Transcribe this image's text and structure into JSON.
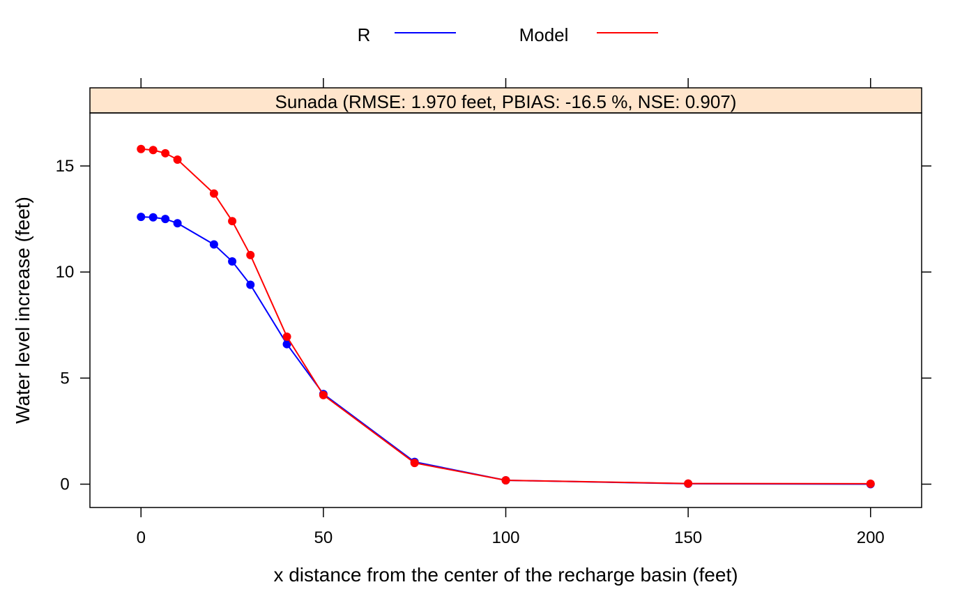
{
  "chart_data": {
    "type": "line",
    "strip_title": "Sunada (RMSE: 1.970 feet, PBIAS: -16.5 %, NSE: 0.907)",
    "xlabel": "x distance from the center of the recharge basin (feet)",
    "ylabel": "Water level increase (feet)",
    "xlim": [
      -14,
      214
    ],
    "ylim": [
      -1.1,
      17.5
    ],
    "x_ticks": [
      0,
      50,
      100,
      150,
      200
    ],
    "y_ticks": [
      0,
      5,
      10,
      15
    ],
    "grid": false,
    "legend_position": "top",
    "strip_color": "#ffe5cc",
    "x": [
      0,
      3.33,
      6.67,
      10,
      20,
      25,
      30,
      40,
      50,
      75,
      100,
      150,
      200
    ],
    "series": [
      {
        "name": "R",
        "color": "#0000ff",
        "values": [
          12.6,
          12.58,
          12.5,
          12.3,
          11.3,
          10.5,
          9.4,
          6.6,
          4.25,
          1.05,
          0.18,
          0.02,
          0.0
        ]
      },
      {
        "name": "Model",
        "color": "#ff0000",
        "values": [
          15.8,
          15.75,
          15.6,
          15.3,
          13.7,
          12.4,
          10.8,
          6.95,
          4.2,
          1.0,
          0.18,
          0.03,
          0.02
        ]
      }
    ]
  }
}
